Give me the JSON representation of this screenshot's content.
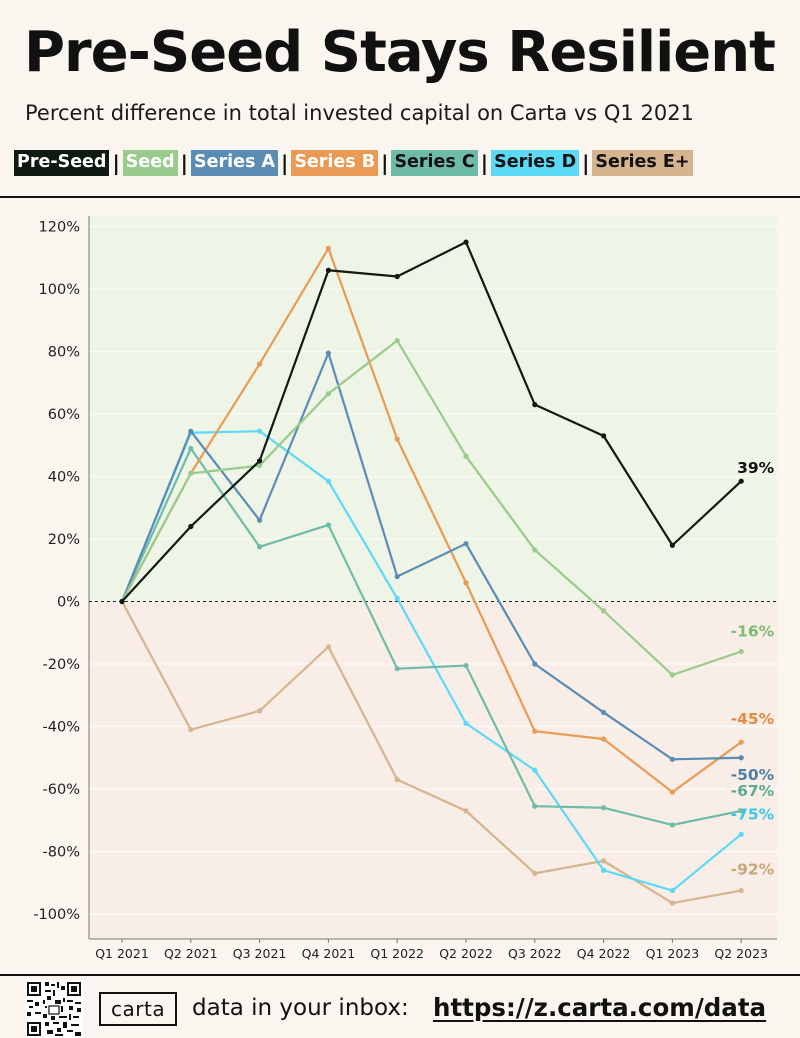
{
  "header": {
    "title": "Pre-Seed Stays Resilient",
    "subtitle": "Percent difference in total invested capital on Carta vs Q1 2021"
  },
  "footer": {
    "logo": "carta",
    "inbox_text": "data in your inbox:",
    "url": "https://z.carta.com/data"
  },
  "chart_data": {
    "type": "line",
    "categories": [
      "Q1 2021",
      "Q2 2021",
      "Q3 2021",
      "Q4 2021",
      "Q1 2022",
      "Q2 2022",
      "Q3 2022",
      "Q4 2022",
      "Q1 2023",
      "Q2 2023"
    ],
    "ylim": [
      -105,
      125
    ],
    "yticks": [
      120,
      100,
      80,
      60,
      40,
      20,
      0,
      -20,
      -40,
      -60,
      -80,
      -100
    ],
    "ytick_labels": [
      "120%",
      "100%",
      "80%",
      "60%",
      "40%",
      "20%",
      "0%",
      "-20%",
      "-40%",
      "-60%",
      "-80%",
      "-100%"
    ],
    "positive_fill": "#eef4e6",
    "negative_fill": "#f8eee7",
    "series": [
      {
        "name": "Series E+",
        "color": "#d5b48f",
        "label_color": "#c9a47a",
        "end_label": "-92%",
        "legend_text_color": "#111111",
        "values": [
          0,
          -41,
          -35,
          -14.5,
          -57,
          -67,
          -87,
          -83,
          -96.5,
          -92.5
        ]
      },
      {
        "name": "Series D",
        "color": "#5bd9f6",
        "label_color": "#3cc7ea",
        "end_label": "-75%",
        "legend_text_color": "#111111",
        "values": [
          0,
          54,
          54.5,
          38.5,
          1,
          -39,
          -54,
          -86,
          -92.5,
          -74.5
        ]
      },
      {
        "name": "Series C",
        "color": "#6ebca7",
        "label_color": "#5aaa94",
        "end_label": "-67%",
        "legend_text_color": "#111111",
        "values": [
          0,
          49,
          17.5,
          24.5,
          -21.5,
          -20.5,
          -65.5,
          -66,
          -71.5,
          -67
        ]
      },
      {
        "name": "Series B",
        "color": "#e99a55",
        "label_color": "#e38b40",
        "end_label": "-45%",
        "legend_text_color": "#ffffff",
        "values": [
          0,
          41,
          76,
          113,
          52,
          6,
          -41.5,
          -44,
          -61,
          -45
        ]
      },
      {
        "name": "Series A",
        "color": "#5b8db4",
        "label_color": "#4f7fa6",
        "end_label": "-50%",
        "legend_text_color": "#ffffff",
        "values": [
          0,
          54.5,
          26,
          79.5,
          8,
          18.5,
          -20,
          -35.5,
          -50.5,
          -50
        ]
      },
      {
        "name": "Seed",
        "color": "#9acb8c",
        "label_color": "#7fbb70",
        "end_label": "-16%",
        "legend_text_color": "#ffffff",
        "values": [
          0,
          41,
          43.5,
          66.5,
          83.5,
          46.5,
          16.5,
          -3,
          -23.5,
          -16
        ]
      },
      {
        "name": "Pre-Seed",
        "color": "#0e1a12",
        "label_color": "#111111",
        "end_label": "39%",
        "legend_text_color": "#ffffff",
        "values": [
          0,
          24,
          45,
          106,
          104,
          115,
          63,
          53,
          18,
          38.5
        ]
      }
    ],
    "legend_order": [
      "Pre-Seed",
      "Seed",
      "Series A",
      "Series B",
      "Series C",
      "Series D",
      "Series E+"
    ],
    "legend_separator": "|"
  }
}
